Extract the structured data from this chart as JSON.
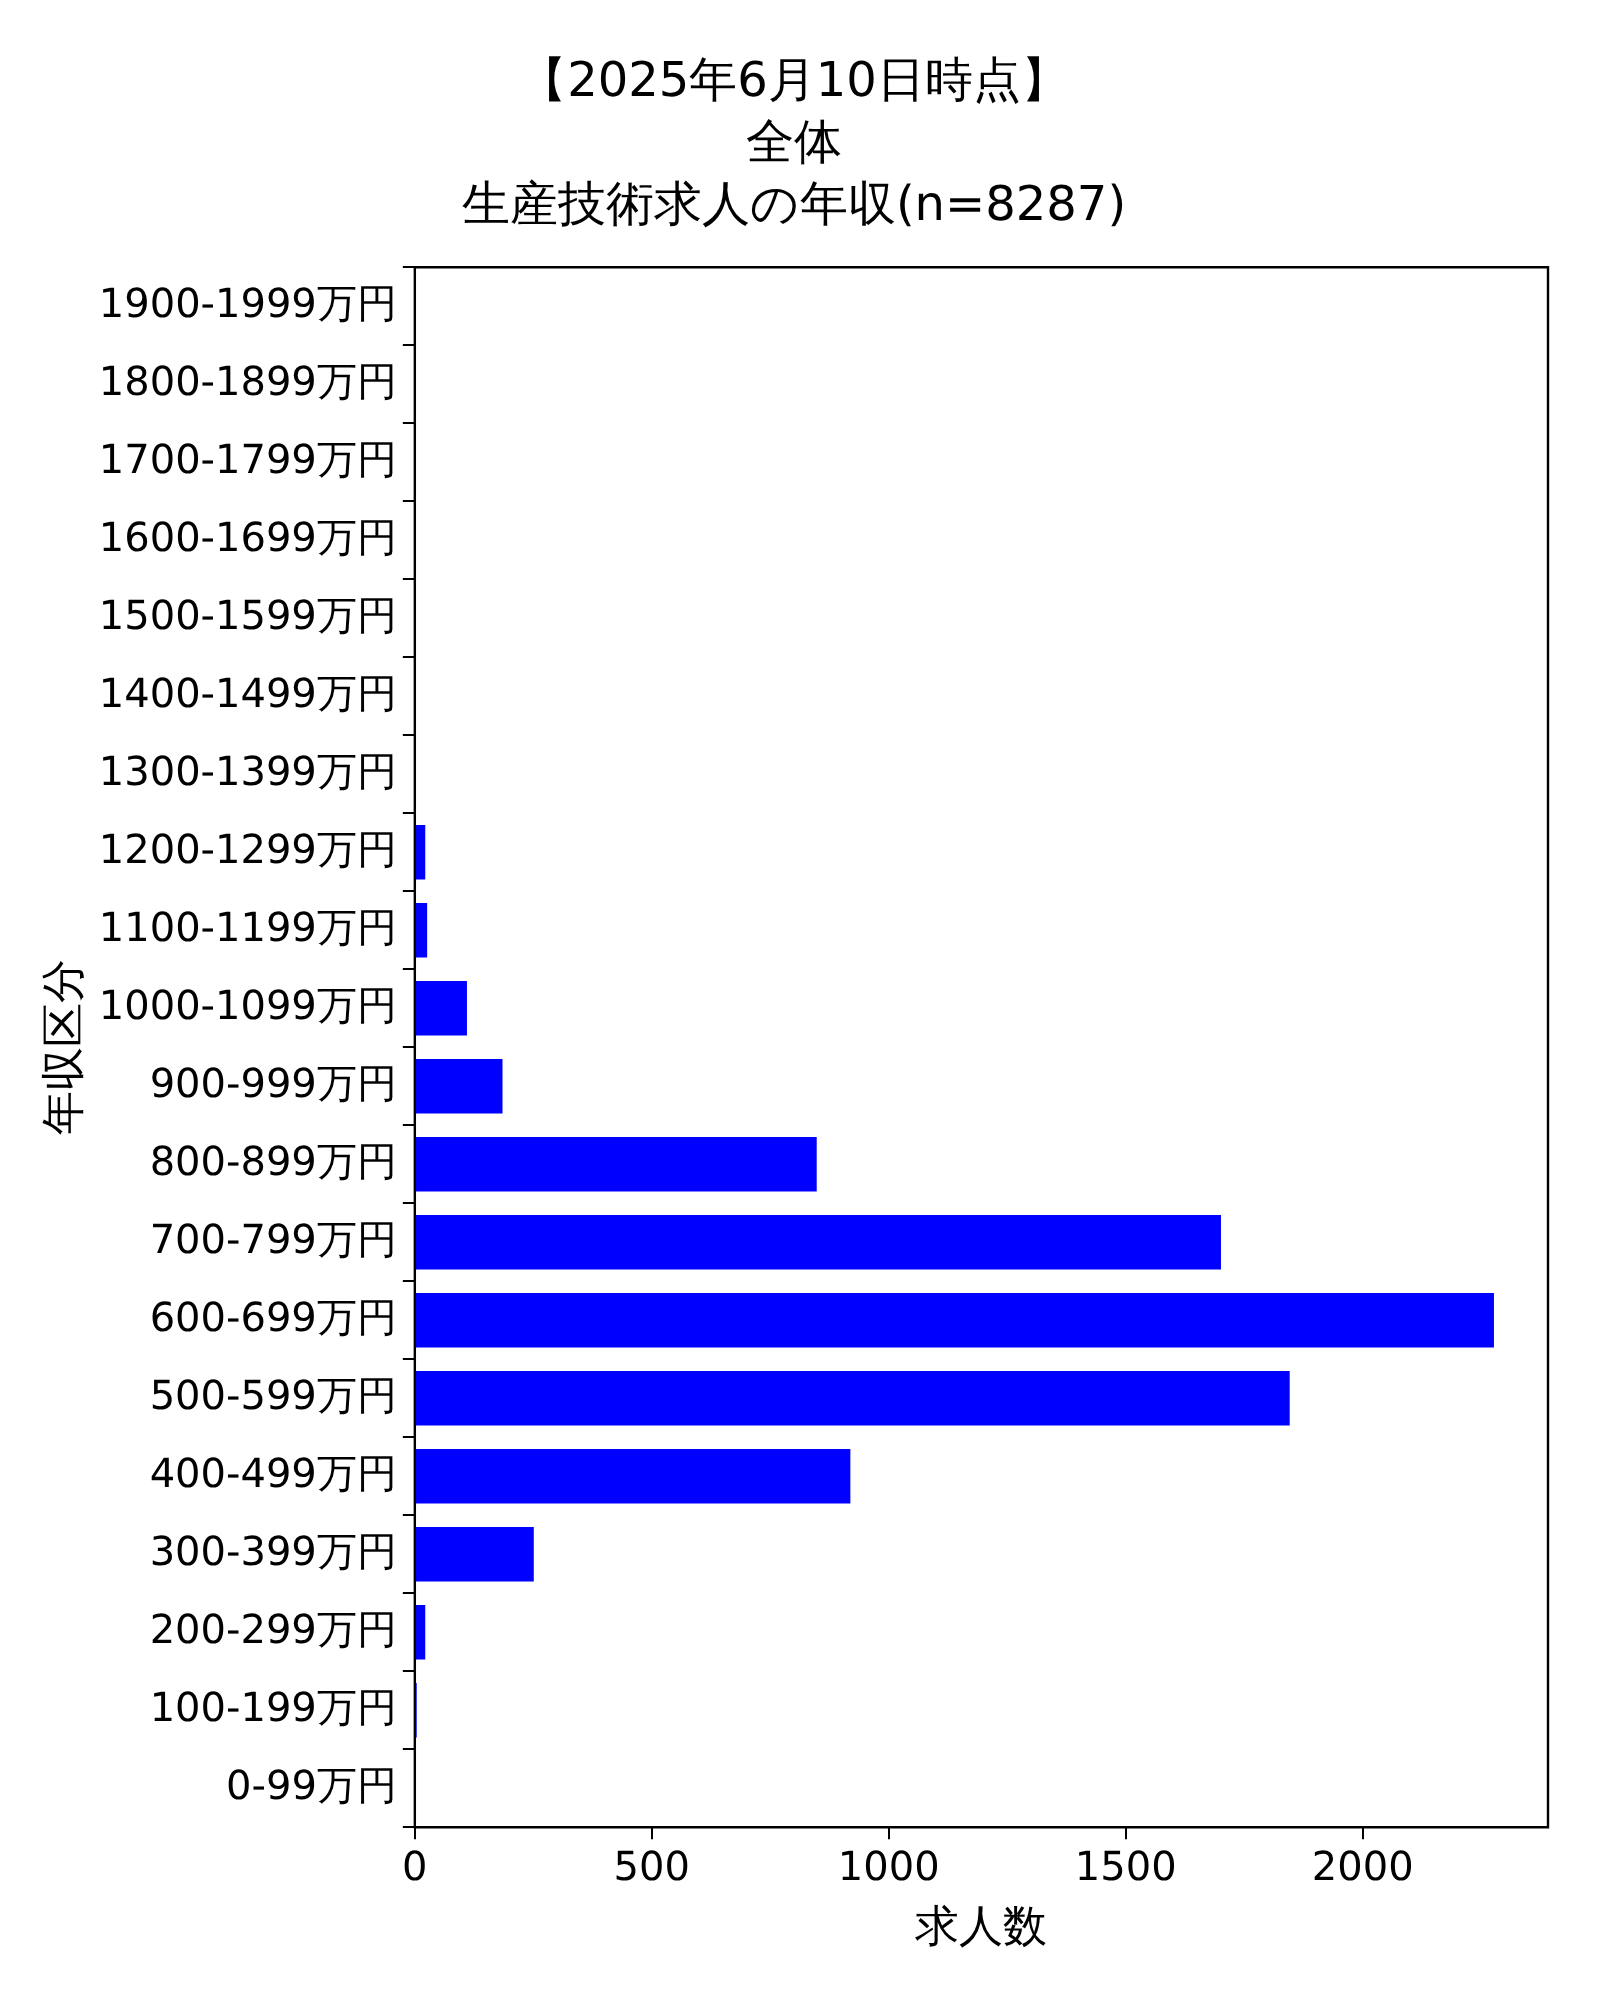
{
  "chart_data": {
    "type": "bar",
    "orientation": "horizontal",
    "title": "【2025年6月10日時点】",
    "subtitle": "全体",
    "annotations": [
      "生産技術求人の年収(n=8287)"
    ],
    "xlabel": "求人数",
    "ylabel": "年収区分",
    "categories": [
      "1900-1999万円",
      "1800-1899万円",
      "1700-1799万円",
      "1600-1699万円",
      "1500-1599万円",
      "1400-1499万円",
      "1300-1399万円",
      "1200-1299万円",
      "1100-1199万円",
      "1000-1099万円",
      "900-999万円",
      "800-899万円",
      "700-799万円",
      "600-699万円",
      "500-599万円",
      "400-499万円",
      "300-399万円",
      "200-299万円",
      "100-199万円",
      "0-99万円"
    ],
    "values": [
      0,
      0,
      0,
      0,
      0,
      0,
      0,
      22,
      26,
      110,
      185,
      848,
      1701,
      2277,
      1846,
      919,
      251,
      22,
      4,
      0
    ],
    "color": "#0000ff",
    "xlim": [
      0,
      2391
    ],
    "xticks": [
      0,
      500,
      1000,
      1500,
      2000
    ],
    "grid": false,
    "legend": false
  }
}
